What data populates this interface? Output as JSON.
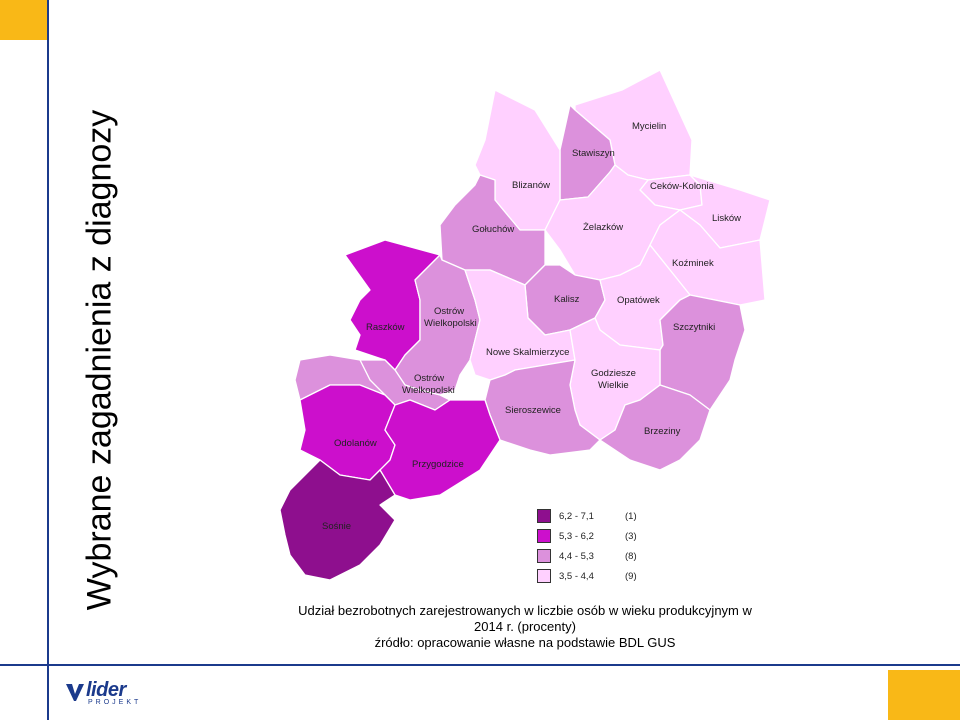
{
  "slide_title": "Wybrane zagadnienia z diagnozy",
  "colors": {
    "accent": "#f9b817",
    "navy": "#1b3a8c",
    "class_1": "#8e0f8e",
    "class_2": "#cc0fcc",
    "class_3": "#dc91dc",
    "class_4": "#ffd0ff"
  },
  "map": {
    "areas": [
      {
        "name": "Mycielin",
        "class": 4
      },
      {
        "name": "Stawiszyn",
        "class": 3
      },
      {
        "name": "Blizanów",
        "class": 4
      },
      {
        "name": "Ceków-Kolonia",
        "class": 4
      },
      {
        "name": "Lisków",
        "class": 4
      },
      {
        "name": "Żelazków",
        "class": 4
      },
      {
        "name": "Koźminek",
        "class": 4
      },
      {
        "name": "Gołuchów",
        "class": 3
      },
      {
        "name": "Kalisz",
        "class": 3
      },
      {
        "name": "Opatówek",
        "class": 4
      },
      {
        "name": "Szczytniki",
        "class": 3
      },
      {
        "name": "Raszków",
        "class": 2
      },
      {
        "name": "Ostrów Wielkopolski (gmina)",
        "label": "Ostrów Wielkopolski",
        "class": 3
      },
      {
        "name": "Nowe Skalmierzyce",
        "class": 4
      },
      {
        "name": "Ostrów Wielkopolski (miasto)",
        "label": "Ostrów Wielkopolski",
        "class": 3
      },
      {
        "name": "Godziesze Wielkie",
        "class": 4
      },
      {
        "name": "Sieroszewice",
        "class": 3
      },
      {
        "name": "Brzeziny",
        "class": 3
      },
      {
        "name": "Odolanów",
        "class": 2
      },
      {
        "name": "Przygodzice",
        "class": 2
      },
      {
        "name": "Sośnie",
        "class": 1
      }
    ]
  },
  "legend": {
    "items": [
      {
        "range": "6,2  -  7,1",
        "count": "(1)"
      },
      {
        "range": "5,3  -  6,2",
        "count": "(3)"
      },
      {
        "range": "4,4  -  5,3",
        "count": "(8)"
      },
      {
        "range": "3,5  -  4,4",
        "count": "(9)"
      }
    ]
  },
  "caption": {
    "line1": "Udział bezrobotnych zarejestrowanych w liczbie osób w wieku produkcyjnym w",
    "line2": "2014 r. (procenty)",
    "line3": "źródło: opracowanie własne na podstawie BDL GUS"
  },
  "logo": {
    "text": "lider",
    "subtext": "PROJEKT"
  }
}
